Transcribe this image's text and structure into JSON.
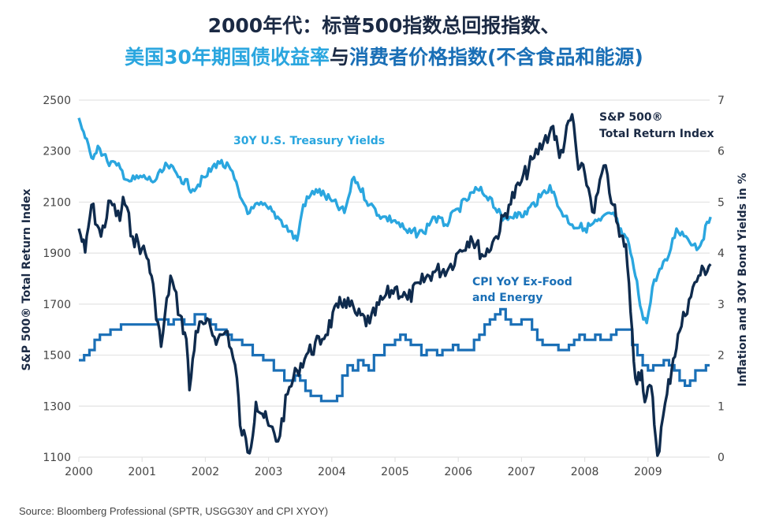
{
  "title": {
    "line1": "2000年代：标普500指数总回报指数、",
    "line2_part1": "美国30年期国债收益率",
    "line2_part2": "与",
    "line2_part3": "消费者价格指数(不含食品和能源)"
  },
  "source": "Source: Bloomberg Professional (SPTR, USGG30Y and CPI XYOY)",
  "colors": {
    "sp500": "#0f2b4d",
    "treasury": "#2aa6df",
    "cpi": "#1a6fb6",
    "grid": "#e3e3e3",
    "text": "#444444"
  },
  "chart_data": {
    "type": "line",
    "title": "2000年代：标普500指数总回报指数、美国30年期国债收益率与消费者价格指数(不含食品和能源)",
    "xlabel": "",
    "ylabel": "S&P 500® Total Return Index",
    "y2label": "Inflation and 30Y Bond Yields in %",
    "xlim": [
      2000,
      2010
    ],
    "ylim": [
      1100,
      2500
    ],
    "y2lim": [
      0,
      7
    ],
    "grid": true,
    "x_ticks": [
      "2000",
      "2001",
      "2002",
      "2003",
      "2004",
      "2005",
      "2006",
      "2007",
      "2008",
      "2009"
    ],
    "y_ticks": [
      "2500",
      "2300",
      "2100",
      "1900",
      "1700",
      "1500",
      "1300",
      "1100"
    ],
    "y2_ticks": [
      "7",
      "6",
      "5",
      "4",
      "3",
      "2",
      "1",
      "0"
    ],
    "annotations": {
      "sp500": [
        "S&P 500®",
        "Total Return Index"
      ],
      "treasury": [
        "30Y U.S. Treasury Yields"
      ],
      "cpi": [
        "CPI YoY Ex-Food",
        "and Energy"
      ]
    },
    "series": [
      {
        "name": "S&P 500® Total Return Index",
        "axis": "left",
        "x": [
          2000.0,
          2000.1,
          2000.2,
          2000.35,
          2000.5,
          2000.65,
          2000.7,
          2000.85,
          2001.0,
          2001.1,
          2001.2,
          2001.3,
          2001.45,
          2001.6,
          2001.7,
          2001.75,
          2001.85,
          2002.0,
          2002.2,
          2002.35,
          2002.5,
          2002.55,
          2002.7,
          2002.8,
          2002.9,
          2003.0,
          2003.15,
          2003.3,
          2003.45,
          2003.6,
          2003.85,
          2004.1,
          2004.2,
          2004.4,
          2004.6,
          2004.8,
          2005.0,
          2005.2,
          2005.4,
          2005.6,
          2005.85,
          2006.0,
          2006.2,
          2006.4,
          2006.6,
          2006.8,
          2007.0,
          2007.2,
          2007.35,
          2007.5,
          2007.6,
          2007.8,
          2007.9,
          2008.0,
          2008.15,
          2008.3,
          2008.45,
          2008.55,
          2008.65,
          2008.75,
          2008.8,
          2008.9,
          2008.95,
          2009.05,
          2009.15,
          2009.3,
          2009.4,
          2009.5,
          2009.65,
          2009.8,
          2009.99
        ],
        "values": [
          1996,
          1903,
          2089,
          1965,
          2104,
          2027,
          2120,
          1965,
          1919,
          1873,
          1718,
          1533,
          1811,
          1656,
          1563,
          1363,
          1594,
          1625,
          1563,
          1594,
          1409,
          1224,
          1115,
          1316,
          1270,
          1224,
          1162,
          1347,
          1440,
          1502,
          1563,
          1687,
          1718,
          1656,
          1625,
          1718,
          1764,
          1718,
          1780,
          1826,
          1842,
          1903,
          1965,
          1888,
          1965,
          2089,
          2182,
          2274,
          2336,
          2398,
          2274,
          2444,
          2228,
          2213,
          2058,
          2243,
          2089,
          1965,
          1934,
          1594,
          1409,
          1440,
          1316,
          1378,
          1106,
          1347,
          1486,
          1594,
          1718,
          1811,
          1857
        ]
      },
      {
        "name": "30Y U.S. Treasury Yields",
        "axis": "right",
        "x": [
          2000.0,
          2000.1,
          2000.2,
          2000.3,
          2000.45,
          2000.6,
          2000.8,
          2001.0,
          2001.2,
          2001.4,
          2001.6,
          2001.8,
          2002.0,
          2002.2,
          2002.4,
          2002.55,
          2002.7,
          2002.85,
          2003.0,
          2003.2,
          2003.45,
          2003.55,
          2003.75,
          2004.0,
          2004.2,
          2004.35,
          2004.6,
          2004.8,
          2005.0,
          2005.2,
          2005.45,
          2005.6,
          2005.8,
          2006.0,
          2006.3,
          2006.5,
          2006.7,
          2006.9,
          2007.0,
          2007.3,
          2007.45,
          2007.6,
          2007.8,
          2008.0,
          2008.25,
          2008.45,
          2008.6,
          2008.7,
          2008.8,
          2008.9,
          2008.98,
          2009.1,
          2009.3,
          2009.45,
          2009.6,
          2009.8,
          2009.99
        ],
        "values": [
          6.65,
          6.26,
          5.87,
          6.1,
          5.8,
          5.72,
          5.41,
          5.49,
          5.41,
          5.72,
          5.49,
          5.25,
          5.49,
          5.8,
          5.64,
          5.1,
          4.79,
          4.95,
          4.87,
          4.64,
          4.25,
          4.95,
          5.25,
          5.02,
          4.79,
          5.49,
          4.95,
          4.71,
          4.64,
          4.4,
          4.4,
          4.71,
          4.56,
          4.87,
          5.25,
          5.1,
          4.64,
          4.79,
          4.71,
          5.1,
          5.33,
          4.87,
          4.56,
          4.48,
          4.64,
          4.79,
          4.33,
          4.17,
          3.55,
          2.86,
          2.63,
          3.48,
          3.86,
          4.48,
          4.33,
          4.1,
          4.71
        ]
      },
      {
        "name": "CPI YoY Ex-Food and Energy",
        "axis": "right",
        "step": true,
        "x_start": 2000,
        "x_step": 0.08333,
        "values": [
          1.9,
          2.0,
          2.1,
          2.3,
          2.4,
          2.4,
          2.5,
          2.5,
          2.6,
          2.6,
          2.6,
          2.6,
          2.6,
          2.6,
          2.6,
          2.7,
          2.7,
          2.6,
          2.7,
          2.7,
          2.6,
          2.6,
          2.8,
          2.8,
          2.7,
          2.6,
          2.5,
          2.5,
          2.4,
          2.3,
          2.3,
          2.2,
          2.2,
          2.0,
          2.0,
          1.9,
          1.9,
          1.7,
          1.7,
          1.5,
          1.5,
          1.6,
          1.5,
          1.3,
          1.2,
          1.2,
          1.1,
          1.1,
          1.1,
          1.2,
          1.6,
          1.8,
          1.7,
          1.9,
          1.8,
          1.7,
          2.0,
          2.0,
          2.2,
          2.2,
          2.3,
          2.4,
          2.3,
          2.2,
          2.2,
          2.0,
          2.1,
          2.1,
          2.0,
          2.1,
          2.1,
          2.2,
          2.1,
          2.1,
          2.1,
          2.3,
          2.4,
          2.6,
          2.7,
          2.8,
          2.9,
          2.7,
          2.6,
          2.6,
          2.7,
          2.7,
          2.5,
          2.3,
          2.2,
          2.2,
          2.2,
          2.1,
          2.1,
          2.2,
          2.3,
          2.4,
          2.3,
          2.3,
          2.4,
          2.3,
          2.3,
          2.4,
          2.5,
          2.5,
          2.5,
          2.2,
          2.0,
          1.8,
          1.7,
          1.8,
          1.8,
          1.9,
          1.8,
          1.7,
          1.5,
          1.4,
          1.5,
          1.7,
          1.7,
          1.8
        ]
      }
    ]
  }
}
